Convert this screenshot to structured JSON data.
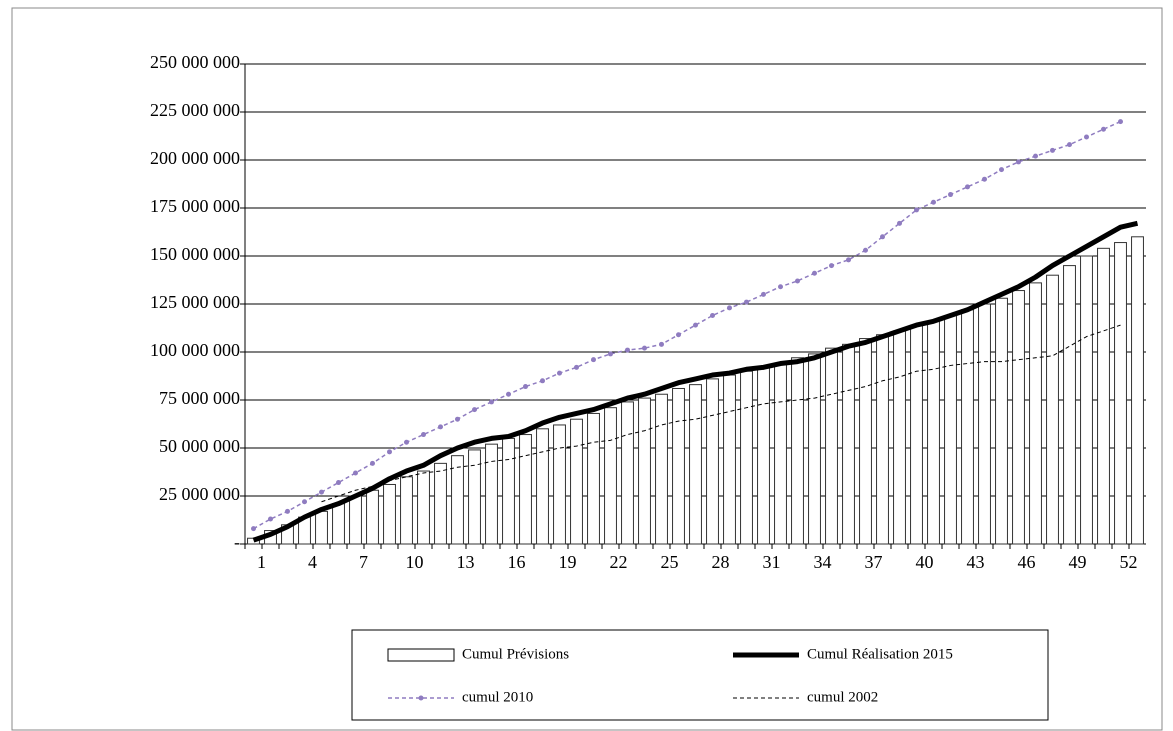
{
  "chart_data": {
    "type": "bar",
    "categories": [
      1,
      null,
      null,
      4,
      null,
      null,
      7,
      null,
      null,
      10,
      null,
      null,
      13,
      null,
      null,
      16,
      null,
      null,
      19,
      null,
      null,
      22,
      null,
      null,
      25,
      null,
      null,
      28,
      null,
      null,
      31,
      null,
      null,
      34,
      null,
      null,
      37,
      null,
      null,
      40,
      null,
      null,
      43,
      null,
      null,
      46,
      null,
      null,
      49,
      null,
      null,
      52,
      null
    ],
    "series": [
      {
        "name": "Cumul Prévisions",
        "type": "bar",
        "color": "#ffffff",
        "values": [
          3000000,
          7000000,
          10000000,
          14000000,
          17000000,
          21000000,
          25000000,
          28000000,
          31000000,
          35000000,
          38000000,
          42000000,
          46000000,
          49000000,
          52000000,
          55000000,
          57000000,
          60000000,
          62000000,
          65000000,
          68000000,
          71000000,
          74000000,
          76000000,
          78000000,
          81000000,
          83000000,
          86000000,
          88000000,
          90000000,
          92000000,
          94000000,
          97000000,
          99000000,
          102000000,
          104000000,
          107000000,
          109000000,
          111000000,
          114000000,
          116000000,
          119000000,
          122000000,
          125000000,
          128000000,
          132000000,
          136000000,
          140000000,
          145000000,
          150000000,
          154000000,
          157000000,
          160000000
        ]
      },
      {
        "name": "Cumul Réalisation 2015",
        "type": "line",
        "color": "#000000",
        "line_width": 5,
        "dashed": false,
        "marker": false,
        "values": [
          2000000,
          5000000,
          9000000,
          14000000,
          18000000,
          21000000,
          25000000,
          29000000,
          34000000,
          38000000,
          41000000,
          46000000,
          50000000,
          53000000,
          55000000,
          56000000,
          59000000,
          63000000,
          66000000,
          68000000,
          70000000,
          73000000,
          76000000,
          78000000,
          81000000,
          84000000,
          86000000,
          88000000,
          89000000,
          91000000,
          92000000,
          94000000,
          95000000,
          97000000,
          100000000,
          103000000,
          105000000,
          108000000,
          111000000,
          114000000,
          116000000,
          119000000,
          122000000,
          126000000,
          130000000,
          134000000,
          139000000,
          145000000,
          150000000,
          155000000,
          160000000,
          165000000,
          167000000
        ]
      },
      {
        "name": "cumul 2010",
        "type": "line",
        "color": "#8f7cc0",
        "line_width": 1.5,
        "dashed": true,
        "marker": true,
        "values": [
          8000000,
          13000000,
          17000000,
          22000000,
          27000000,
          32000000,
          37000000,
          42000000,
          48000000,
          53000000,
          57000000,
          61000000,
          65000000,
          70000000,
          74000000,
          78000000,
          82000000,
          85000000,
          89000000,
          92000000,
          96000000,
          99000000,
          101000000,
          102000000,
          104000000,
          109000000,
          114000000,
          119000000,
          123000000,
          126000000,
          130000000,
          134000000,
          137000000,
          141000000,
          145000000,
          148000000,
          153000000,
          160000000,
          167000000,
          174000000,
          178000000,
          182000000,
          186000000,
          190000000,
          195000000,
          199000000,
          202000000,
          205000000,
          208000000,
          212000000,
          216000000,
          220000000,
          null
        ]
      },
      {
        "name": "cumul 2002",
        "type": "line",
        "color": "#000000",
        "line_width": 1,
        "dashed": true,
        "marker": false,
        "values": [
          null,
          null,
          null,
          null,
          22000000,
          25000000,
          28000000,
          30000000,
          33000000,
          35000000,
          37000000,
          38000000,
          40000000,
          41000000,
          43000000,
          44000000,
          46000000,
          48000000,
          50000000,
          51000000,
          53000000,
          54000000,
          57000000,
          59000000,
          62000000,
          64000000,
          65000000,
          67000000,
          69000000,
          71000000,
          73000000,
          74000000,
          75000000,
          76000000,
          78000000,
          80000000,
          82000000,
          85000000,
          87000000,
          90000000,
          91000000,
          93000000,
          94000000,
          95000000,
          95000000,
          96000000,
          97000000,
          98000000,
          103000000,
          108000000,
          111000000,
          114000000,
          null
        ]
      }
    ],
    "ylim": [
      0,
      250000000
    ],
    "yticks": [
      {
        "value": 0,
        "label": "-"
      },
      {
        "value": 25000000,
        "label": "25 000 000"
      },
      {
        "value": 50000000,
        "label": "50 000 000"
      },
      {
        "value": 75000000,
        "label": "75 000 000"
      },
      {
        "value": 100000000,
        "label": "100 000 000"
      },
      {
        "value": 125000000,
        "label": "125 000 000"
      },
      {
        "value": 150000000,
        "label": "150 000 000"
      },
      {
        "value": 175000000,
        "label": "175 000 000"
      },
      {
        "value": 200000000,
        "label": "200 000 000"
      },
      {
        "value": 225000000,
        "label": "225 000 000"
      },
      {
        "value": 250000000,
        "label": "250 000 000"
      }
    ],
    "grid": true,
    "legend": "bottom"
  }
}
